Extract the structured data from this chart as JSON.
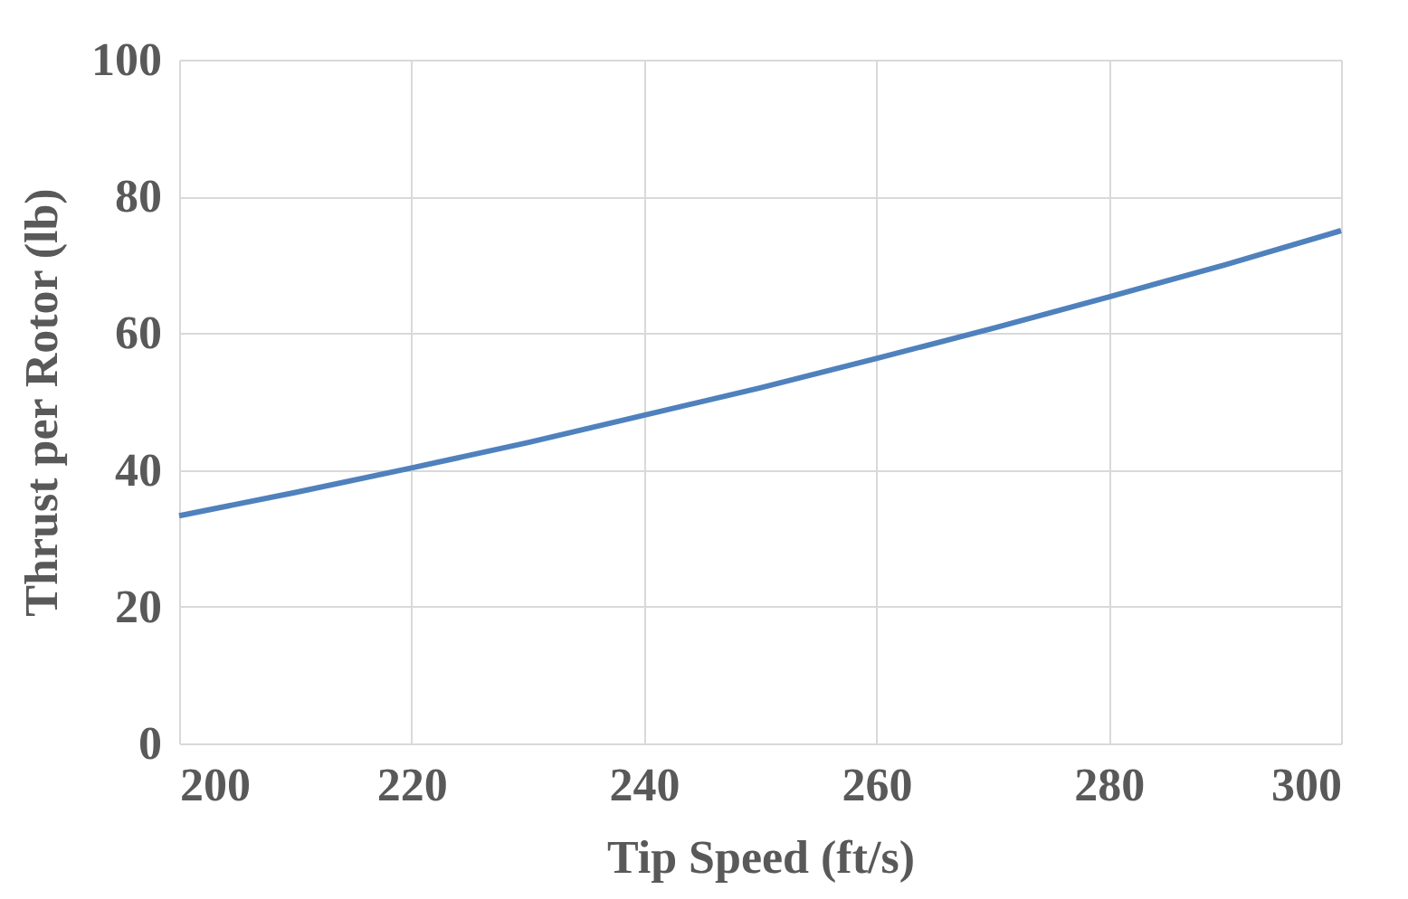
{
  "chart_data": {
    "type": "line",
    "xlabel": "Tip Speed (ft/s)",
    "ylabel": "Thrust per Rotor (lb)",
    "x": [
      200,
      210,
      220,
      230,
      240,
      250,
      260,
      270,
      280,
      290,
      300
    ],
    "series": [
      {
        "color": "#4f81bd",
        "values": [
          33.3,
          36.7,
          40.3,
          44.0,
          48.0,
          52.0,
          56.3,
          60.7,
          65.3,
          70.0,
          75.0
        ]
      }
    ],
    "xlim": [
      200,
      300
    ],
    "xticks": [
      200,
      220,
      240,
      260,
      280,
      300
    ],
    "ylim": [
      0,
      100
    ],
    "yticks": [
      0,
      20,
      40,
      60,
      80,
      100
    ],
    "grid": true,
    "marker": "none",
    "line_style": "solid"
  }
}
